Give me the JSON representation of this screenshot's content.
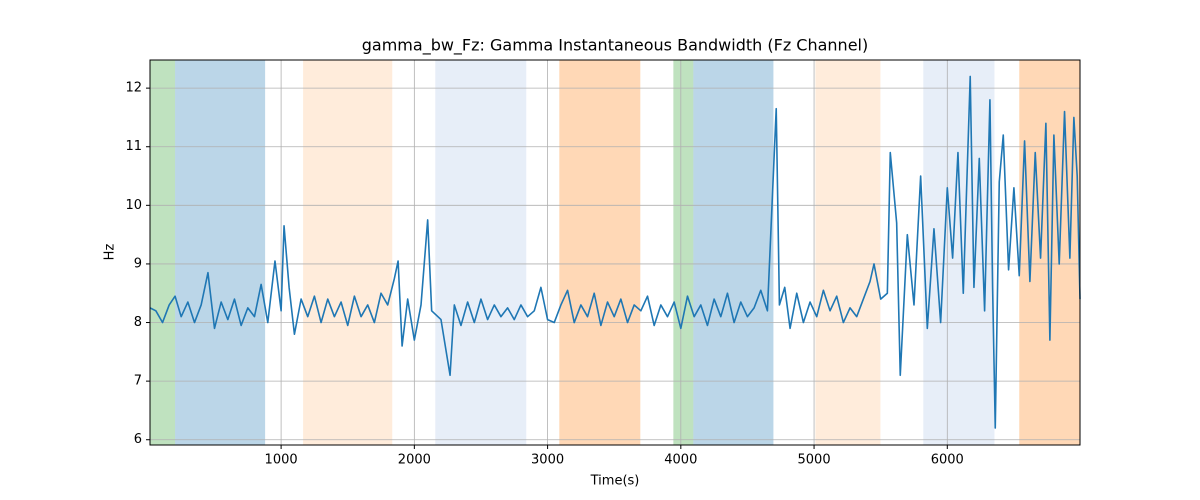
{
  "chart_data": {
    "type": "line",
    "title": "gamma_bw_Fz: Gamma Instantaneous Bandwidth (Fz Channel)",
    "xlabel": "Time(s)",
    "ylabel": "Hz",
    "xlim": [
      16,
      6996
    ],
    "ylim": [
      5.91,
      12.48
    ],
    "xticks": [
      1000,
      2000,
      3000,
      4000,
      5000,
      6000
    ],
    "yticks": [
      6,
      7,
      8,
      9,
      10,
      11,
      12
    ],
    "grid": true,
    "spans": [
      {
        "start": 16,
        "end": 204,
        "color": "#2ca02c",
        "opacity": 0.3
      },
      {
        "start": 204,
        "end": 880,
        "color": "#1f77b4",
        "opacity": 0.3
      },
      {
        "start": 1165,
        "end": 1834,
        "color": "#ff7f0e",
        "opacity": 0.15
      },
      {
        "start": 2157,
        "end": 2840,
        "color": "#aec7e8",
        "opacity": 0.3
      },
      {
        "start": 3088,
        "end": 3696,
        "color": "#ff7f0e",
        "opacity": 0.3
      },
      {
        "start": 3944,
        "end": 4094,
        "color": "#2ca02c",
        "opacity": 0.3
      },
      {
        "start": 4094,
        "end": 4695,
        "color": "#1f77b4",
        "opacity": 0.3
      },
      {
        "start": 5010,
        "end": 5498,
        "color": "#ff7f0e",
        "opacity": 0.15
      },
      {
        "start": 5820,
        "end": 6354,
        "color": "#aec7e8",
        "opacity": 0.3
      },
      {
        "start": 6540,
        "end": 6996,
        "color": "#ff7f0e",
        "opacity": 0.3
      }
    ],
    "series": [
      {
        "color": "#1f77b4",
        "x": [
          16,
          60,
          110,
          160,
          204,
          250,
          300,
          350,
          400,
          451,
          500,
          550,
          600,
          650,
          700,
          750,
          800,
          850,
          900,
          954,
          1000,
          1022,
          1060,
          1100,
          1150,
          1200,
          1250,
          1300,
          1350,
          1400,
          1450,
          1500,
          1550,
          1600,
          1650,
          1700,
          1750,
          1800,
          1850,
          1878,
          1908,
          1950,
          2000,
          2050,
          2100,
          2130,
          2200,
          2268,
          2300,
          2350,
          2400,
          2450,
          2500,
          2550,
          2600,
          2650,
          2700,
          2750,
          2800,
          2850,
          2900,
          2950,
          3000,
          3050,
          3100,
          3150,
          3200,
          3250,
          3300,
          3350,
          3400,
          3450,
          3500,
          3550,
          3600,
          3650,
          3700,
          3750,
          3800,
          3850,
          3900,
          3950,
          4000,
          4050,
          4100,
          4150,
          4200,
          4250,
          4300,
          4350,
          4400,
          4450,
          4500,
          4550,
          4600,
          4650,
          4716,
          4740,
          4780,
          4820,
          4870,
          4920,
          4970,
          5020,
          5070,
          5120,
          5170,
          5220,
          5270,
          5320,
          5370,
          5420,
          5450,
          5500,
          5550,
          5572,
          5620,
          5647,
          5700,
          5750,
          5800,
          5850,
          5900,
          5950,
          6000,
          6040,
          6080,
          6120,
          6172,
          6200,
          6240,
          6280,
          6320,
          6340,
          6360,
          6390,
          6420,
          6460,
          6500,
          6540,
          6580,
          6620,
          6660,
          6700,
          6740,
          6770,
          6800,
          6840,
          6880,
          6920,
          6950,
          6975,
          6996
        ],
        "values": [
          8.25,
          8.2,
          8.0,
          8.3,
          8.45,
          8.1,
          8.35,
          8.0,
          8.3,
          8.85,
          7.9,
          8.35,
          8.05,
          8.4,
          7.95,
          8.25,
          8.1,
          8.65,
          8.0,
          9.05,
          8.2,
          9.65,
          8.6,
          7.8,
          8.4,
          8.1,
          8.45,
          8.0,
          8.4,
          8.1,
          8.35,
          7.95,
          8.45,
          8.1,
          8.3,
          8.0,
          8.5,
          8.3,
          8.75,
          9.05,
          7.6,
          8.4,
          7.7,
          8.3,
          9.75,
          8.2,
          8.05,
          7.1,
          8.3,
          7.95,
          8.35,
          8.0,
          8.4,
          8.05,
          8.3,
          8.1,
          8.25,
          8.05,
          8.3,
          8.1,
          8.2,
          8.6,
          8.05,
          8.0,
          8.3,
          8.55,
          8.0,
          8.3,
          8.1,
          8.5,
          7.95,
          8.35,
          8.1,
          8.4,
          8.0,
          8.3,
          8.2,
          8.45,
          7.95,
          8.3,
          8.1,
          8.35,
          7.9,
          8.45,
          8.1,
          8.3,
          7.95,
          8.4,
          8.1,
          8.5,
          8.0,
          8.35,
          8.1,
          8.25,
          8.55,
          8.2,
          11.65,
          8.3,
          8.6,
          7.9,
          8.5,
          8.0,
          8.35,
          8.1,
          8.55,
          8.2,
          8.45,
          8.0,
          8.25,
          8.1,
          8.4,
          8.7,
          9.0,
          8.4,
          8.5,
          10.9,
          9.7,
          7.1,
          9.5,
          8.3,
          10.5,
          7.9,
          9.6,
          8.0,
          10.3,
          9.1,
          10.9,
          8.5,
          12.2,
          8.6,
          10.8,
          8.2,
          11.8,
          8.6,
          6.2,
          10.4,
          11.2,
          8.9,
          10.3,
          8.8,
          11.1,
          8.7,
          10.9,
          9.1,
          11.4,
          7.7,
          11.2,
          9.0,
          11.6,
          9.1,
          11.5,
          10.5,
          8.4
        ]
      }
    ]
  }
}
